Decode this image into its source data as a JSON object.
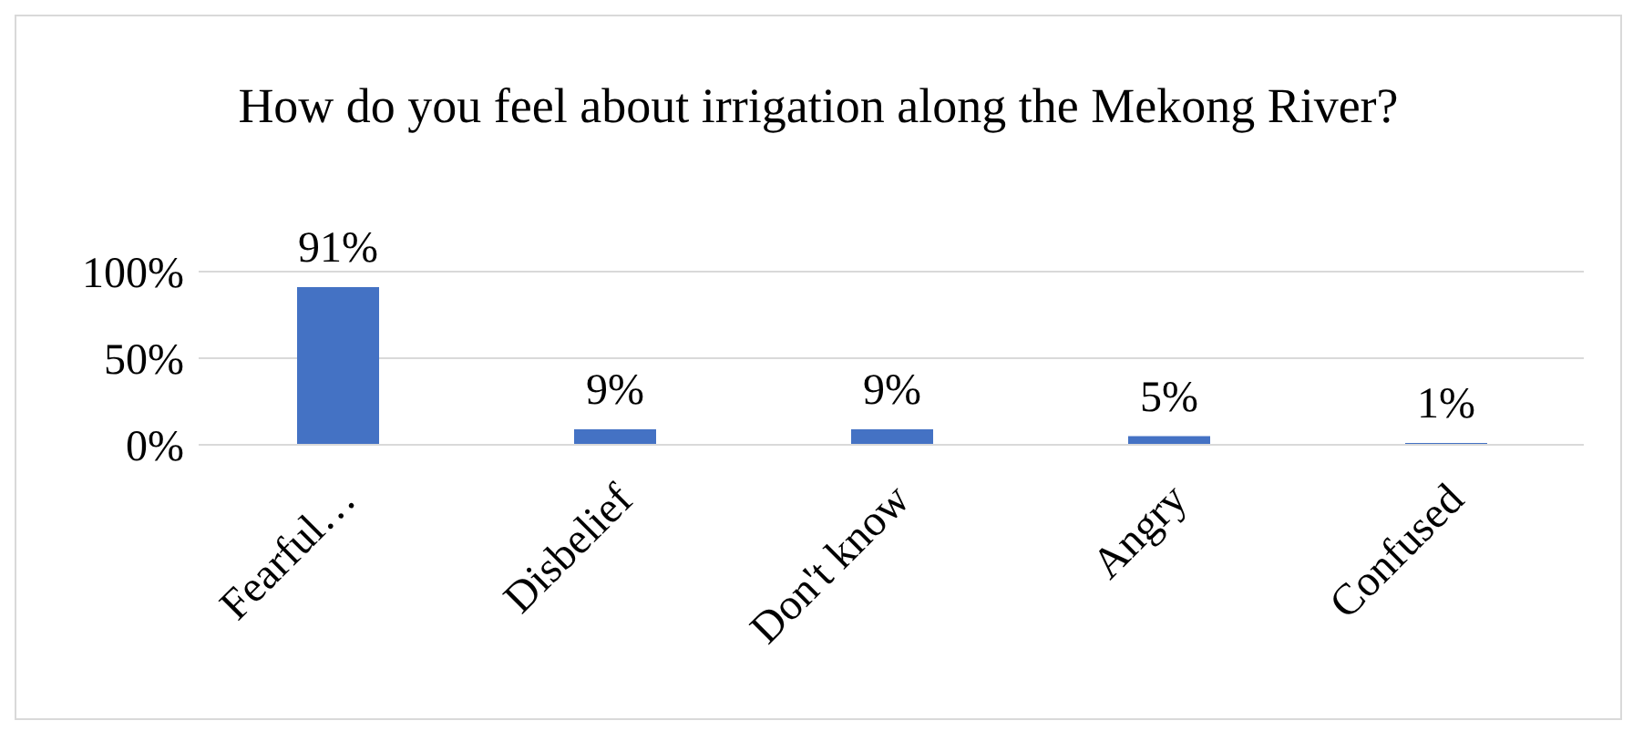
{
  "chart_data": {
    "type": "bar",
    "title": "How do you feel about irrigation along the Mekong River?",
    "categories": [
      "Fearful…",
      "Disbelief",
      "Don't know",
      "Angry",
      "Confused"
    ],
    "values": [
      91,
      9,
      9,
      5,
      1
    ],
    "value_labels": [
      "91%",
      "9%",
      "9%",
      "5%",
      "1%"
    ],
    "color": "#4472c4",
    "ylim": [
      0,
      100
    ],
    "yticks": [
      {
        "value": 0,
        "label": "0%"
      },
      {
        "value": 50,
        "label": "50%"
      },
      {
        "value": 100,
        "label": "100%"
      }
    ],
    "grid": "y"
  }
}
